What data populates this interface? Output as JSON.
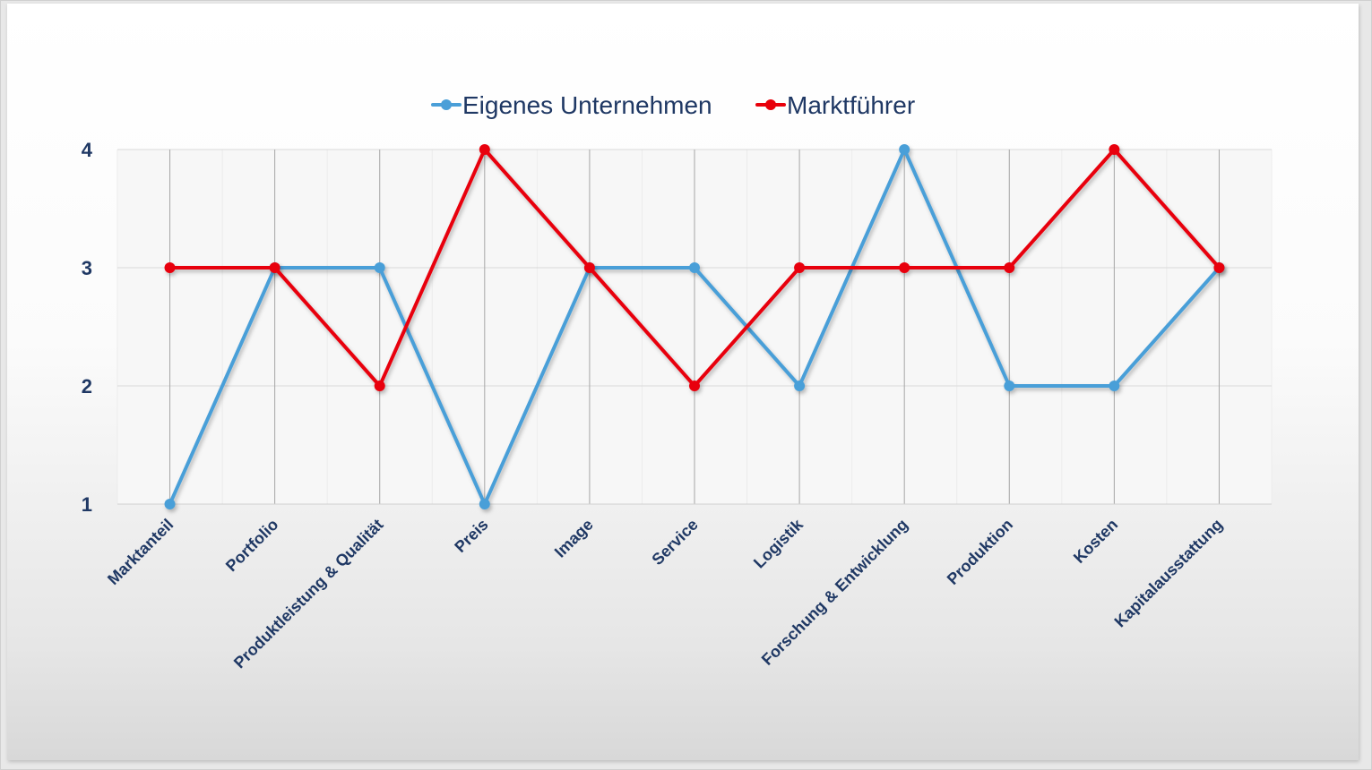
{
  "chart_data": {
    "type": "line",
    "title": "",
    "xlabel": "",
    "ylabel": "",
    "categories": [
      "Marktanteil",
      "Portfolio",
      "Produktleistung & Qualität",
      "Preis",
      "Image",
      "Service",
      "Logistik",
      "Forschung & Entwicklung",
      "Produktion",
      "Kosten",
      "Kapitalausstattung"
    ],
    "series": [
      {
        "name": "Eigenes Unternehmen",
        "color": "#4a9fd8",
        "values": [
          1,
          3,
          3,
          1,
          3,
          3,
          2,
          4,
          2,
          2,
          3
        ]
      },
      {
        "name": "Marktführer",
        "color": "#e8000b",
        "values": [
          3,
          3,
          2,
          4,
          3,
          2,
          3,
          3,
          3,
          4,
          3
        ]
      }
    ],
    "yticks": [
      "1",
      "2",
      "3",
      "4"
    ],
    "ylim": [
      1,
      4
    ],
    "grid": true,
    "legend": "top-center"
  }
}
